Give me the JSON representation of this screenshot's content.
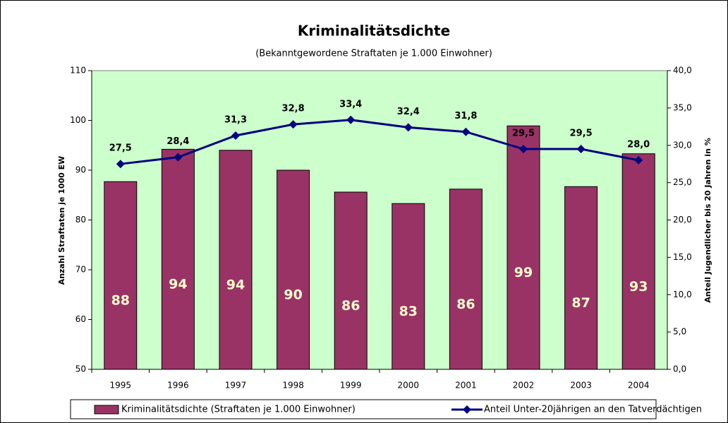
{
  "chart_data": {
    "type": "bar",
    "title": "Kriminalitätsdichte",
    "subtitle": "(Bekanntgewordene Straftaten je 1.000 Einwohner)",
    "ylabel": "Anzahl Straftaten je 1000 EW",
    "y2label": "Anteil Jugendlicher bis 20 Jahren in %",
    "categories": [
      "1995",
      "1996",
      "1997",
      "1998",
      "1999",
      "2000",
      "2001",
      "2002",
      "2003",
      "2004"
    ],
    "series": [
      {
        "name": "Kriminalitätsdichte (Straftaten je 1.000 Einwohner)",
        "type": "bar",
        "color": "#993366",
        "values": [
          87.7,
          94.2,
          94.0,
          90.0,
          85.6,
          83.3,
          86.2,
          98.9,
          86.7,
          93.3
        ],
        "value_labels": [
          "88",
          "94",
          "94",
          "90",
          "86",
          "83",
          "86",
          "99",
          "87",
          "93"
        ]
      },
      {
        "name": "Anteil Unter-20jährigen an den Tatverdächtigen",
        "type": "line",
        "axis": "y2",
        "color": "#000080",
        "values": [
          27.5,
          28.4,
          31.3,
          32.8,
          33.4,
          32.4,
          31.8,
          29.5,
          29.5,
          28.0
        ],
        "value_labels": [
          "27,5",
          "28,4",
          "31,3",
          "32,8",
          "33,4",
          "32,4",
          "31,8",
          "29,5",
          "29,5",
          "28,0"
        ]
      }
    ],
    "ylim": [
      50,
      110
    ],
    "yticks": [
      50,
      60,
      70,
      80,
      90,
      100,
      110
    ],
    "y2lim": [
      0,
      40
    ],
    "y2ticks": [
      {
        "value": 0,
        "label": "0,0"
      },
      {
        "value": 5,
        "label": "5,0"
      },
      {
        "value": 10,
        "label": "10,0"
      },
      {
        "value": 15,
        "label": "15,0"
      },
      {
        "value": 20,
        "label": "20,0"
      },
      {
        "value": 25,
        "label": "25,0"
      },
      {
        "value": 30,
        "label": "30,0"
      },
      {
        "value": 35,
        "label": "35,0"
      },
      {
        "value": 40,
        "label": "40,0"
      }
    ],
    "grid": false,
    "plot_background": "#ccffcc",
    "legend": "bottom"
  }
}
